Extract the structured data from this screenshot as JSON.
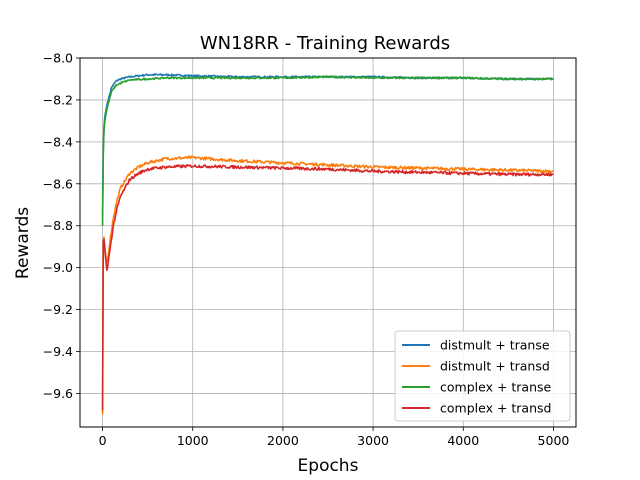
{
  "chart_data": {
    "type": "line",
    "title": "WN18RR - Training Rewards",
    "xlabel": "Epochs",
    "ylabel": "Rewards",
    "xlim": [
      -250,
      5250
    ],
    "ylim": [
      -9.76,
      -8.0
    ],
    "xticks": [
      0,
      1000,
      2000,
      3000,
      4000,
      5000
    ],
    "xtick_labels": [
      "0",
      "1000",
      "2000",
      "3000",
      "4000",
      "5000"
    ],
    "yticks": [
      -8.0,
      -8.2,
      -8.4,
      -8.6,
      -8.8,
      -9.0,
      -9.2,
      -9.4,
      -9.6
    ],
    "ytick_labels": [
      "−8.0",
      "−8.2",
      "−8.4",
      "−8.6",
      "−8.8",
      "−9.0",
      "−9.2",
      "−9.4",
      "−9.6"
    ],
    "grid": true,
    "legend_position": "lower-right",
    "series": [
      {
        "name": "distmult + transe",
        "color": "#1f77b4",
        "x": [
          0,
          10,
          25,
          50,
          100,
          150,
          200,
          300,
          500,
          700,
          1000,
          1500,
          2000,
          2500,
          3000,
          3500,
          4000,
          4500,
          5000
        ],
        "y": [
          -8.75,
          -8.36,
          -8.28,
          -8.22,
          -8.14,
          -8.11,
          -8.1,
          -8.09,
          -8.08,
          -8.08,
          -8.085,
          -8.09,
          -8.09,
          -8.09,
          -8.09,
          -8.095,
          -8.095,
          -8.1,
          -8.1
        ],
        "noise": 0.004
      },
      {
        "name": "distmult + transd",
        "color": "#ff7f0e",
        "x": [
          0,
          5,
          15,
          30,
          50,
          80,
          120,
          160,
          200,
          300,
          400,
          500,
          700,
          1000,
          1500,
          2000,
          2500,
          3000,
          3500,
          4000,
          4500,
          5000
        ],
        "y": [
          -9.7,
          -8.9,
          -8.85,
          -8.92,
          -8.98,
          -8.88,
          -8.76,
          -8.68,
          -8.62,
          -8.55,
          -8.52,
          -8.5,
          -8.48,
          -8.475,
          -8.49,
          -8.5,
          -8.51,
          -8.52,
          -8.525,
          -8.53,
          -8.535,
          -8.54
        ],
        "noise": 0.007
      },
      {
        "name": "complex + transe",
        "color": "#2ca02c",
        "x": [
          0,
          10,
          25,
          50,
          100,
          150,
          200,
          300,
          500,
          700,
          1000,
          1500,
          2000,
          2500,
          3000,
          3500,
          4000,
          4500,
          5000
        ],
        "y": [
          -8.8,
          -8.38,
          -8.3,
          -8.24,
          -8.16,
          -8.13,
          -8.12,
          -8.105,
          -8.1,
          -8.095,
          -8.095,
          -8.095,
          -8.095,
          -8.09,
          -8.095,
          -8.095,
          -8.095,
          -8.1,
          -8.1
        ],
        "noise": 0.004
      },
      {
        "name": "complex + transd",
        "color": "#d62728",
        "x": [
          0,
          5,
          15,
          30,
          50,
          80,
          120,
          160,
          200,
          300,
          400,
          500,
          700,
          1000,
          1500,
          2000,
          2500,
          3000,
          3500,
          4000,
          4500,
          5000
        ],
        "y": [
          -9.68,
          -8.88,
          -8.86,
          -8.94,
          -9.02,
          -8.92,
          -8.8,
          -8.72,
          -8.66,
          -8.58,
          -8.55,
          -8.53,
          -8.52,
          -8.515,
          -8.52,
          -8.525,
          -8.53,
          -8.54,
          -8.545,
          -8.55,
          -8.555,
          -8.555
        ],
        "noise": 0.007
      }
    ]
  }
}
